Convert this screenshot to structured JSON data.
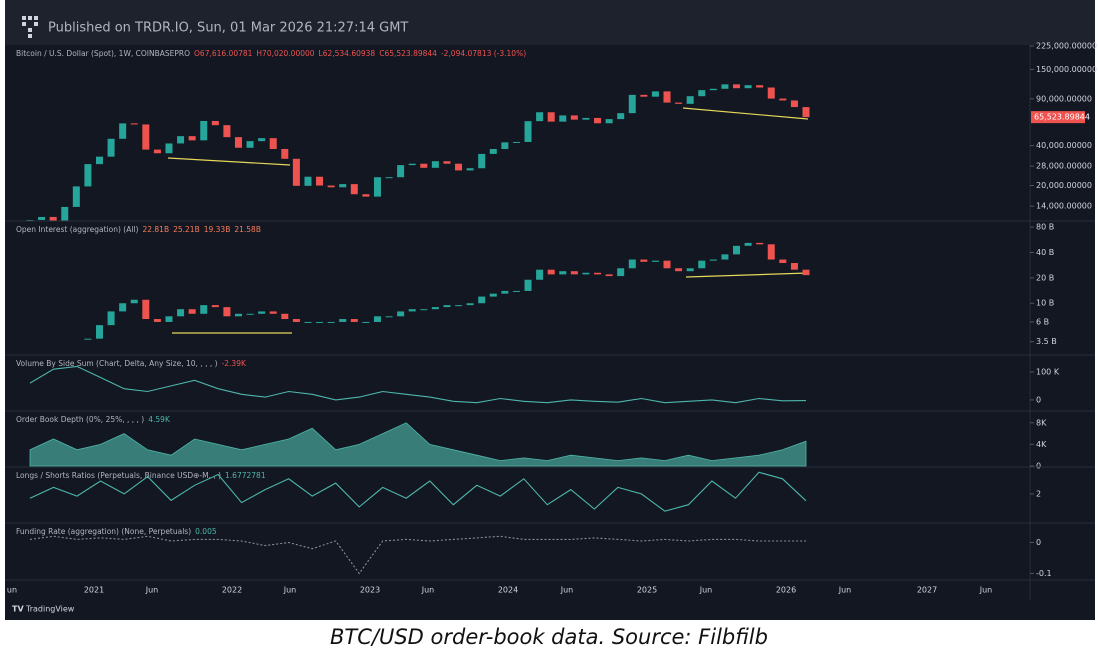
{
  "header": {
    "title": "Published on TRDR.IO, Sun, 01 Mar 2026 21:27:14 GMT"
  },
  "panes": [
    {
      "name": "Bitcoin / U.S. Dollar (Spot), 1W, COINBASEPRO",
      "legend_values": [
        "O67,616.00781",
        "H70,020.00000",
        "L62,534.60938",
        "C65,523.89844",
        "-2,094.07813 (-3.10%)"
      ],
      "legend_color": "#ef5350",
      "log": true,
      "ylim": [
        11000,
        225000
      ],
      "yticks": [
        {
          "value": 225000,
          "label": "225,000.00000"
        },
        {
          "value": 150000,
          "label": "150,000.00000"
        },
        {
          "value": 90000,
          "label": "90,000.00000"
        },
        {
          "value": 40000,
          "label": "40,000.00000"
        },
        {
          "value": 28000,
          "label": "28,000.00000"
        },
        {
          "value": 20000,
          "label": "20,000.00000"
        },
        {
          "value": 14000,
          "label": "14,000.00000"
        }
      ],
      "last": {
        "value": 65523.89844,
        "label": "65,523.89844"
      },
      "style": "candles",
      "values": [
        11000,
        11600,
        10800,
        13800,
        19700,
        29000,
        33000,
        45000,
        58800,
        57700,
        37300,
        35000,
        41500,
        47100,
        43800,
        61300,
        57000,
        46300,
        38500,
        43200,
        45500,
        37700,
        31800,
        19900,
        23300,
        20000,
        19400,
        20500,
        17200,
        16500,
        23100,
        23100,
        28500,
        29200,
        27200,
        30500,
        29200,
        26000,
        27000,
        34600,
        37700,
        42300,
        42600,
        61100,
        71300,
        60600,
        67500,
        62700,
        64600,
        58900,
        63300,
        70200,
        96400,
        93400,
        102400,
        84300,
        82500,
        94200,
        104600,
        107100,
        115700,
        108200,
        114000,
        109500,
        90400,
        87500,
        78000,
        65523.89844
      ]
    },
    {
      "name": "Open Interest (aggregation) (All)",
      "legend_values": [
        "22.81B",
        "25.21B",
        "19.33B",
        "21.58B"
      ],
      "legend_color": "#f77c5a",
      "log": true,
      "ylim": [
        2.5,
        92
      ],
      "yticks": [
        {
          "value": 80,
          "label": "80 B"
        },
        {
          "value": 40,
          "label": "40 B"
        },
        {
          "value": 20,
          "label": "20 B"
        },
        {
          "value": 10,
          "label": "10 B"
        },
        {
          "value": 6,
          "label": "6 B"
        },
        {
          "value": 3.5,
          "label": "3.5 B"
        }
      ],
      "style": "candles",
      "values": [
        null,
        null,
        null,
        null,
        null,
        3.8,
        5.5,
        8,
        10,
        11,
        6.5,
        6,
        7,
        8.5,
        7.5,
        9.5,
        9,
        7,
        7.5,
        7.5,
        8,
        7.5,
        6.5,
        6,
        6,
        6,
        6,
        6.5,
        6,
        6,
        7,
        7,
        8,
        8.5,
        8.5,
        9,
        9.5,
        9.5,
        10,
        12,
        13,
        14,
        14,
        19,
        25,
        22,
        24,
        22,
        23,
        22,
        21,
        26,
        33,
        31,
        32,
        26,
        24,
        26,
        32,
        33,
        38,
        48,
        52,
        50,
        33,
        30,
        25,
        21.58
      ]
    },
    {
      "name": "Volume By Side Sum (Chart, Delta, Any Size, 10, , , , )",
      "legend_values": [
        "-2.39K"
      ],
      "legend_color": "#ef5350",
      "log": false,
      "ylim": [
        -36,
        157
      ],
      "yticks": [
        {
          "value": 100,
          "label": "100 K"
        },
        0
      ],
      "style": "line",
      "color": "#4db6ac",
      "values": [
        60,
        110,
        120,
        80,
        40,
        30,
        50,
        70,
        40,
        20,
        10,
        30,
        20,
        0,
        10,
        30,
        20,
        10,
        -5,
        -10,
        5,
        -5,
        -10,
        0,
        -5,
        -8,
        5,
        -10,
        -5,
        0,
        -10,
        5,
        -3,
        -2.39
      ]
    },
    {
      "name": "Order Book Depth (0%, 25%, , , , )",
      "legend_values": [
        "4.59K"
      ],
      "legend_color": "#4db6ac",
      "log": false,
      "ylim": [
        0,
        10
      ],
      "yticks": [
        {
          "value": 8,
          "label": "8K"
        },
        {
          "value": 4,
          "label": "4K"
        },
        0
      ],
      "style": "area",
      "color": "#3f8f86",
      "values": [
        3,
        5,
        3,
        4,
        6,
        3,
        2,
        5,
        4,
        3,
        4,
        5,
        7,
        3,
        4,
        6,
        8,
        4,
        3,
        2,
        1,
        1.5,
        1,
        2,
        1.5,
        1,
        1.5,
        1,
        2,
        1,
        1.5,
        2,
        3,
        4.59
      ]
    },
    {
      "name": "Longs / Shorts Ratios (Perpetuals, Binance USD⊕-M, , )",
      "legend_values": [
        "1.6772781"
      ],
      "legend_color": "#4db6ac",
      "log": false,
      "ylim": [
        0.7,
        3.2
      ],
      "yticks": [
        2
      ],
      "style": "line",
      "color": "#4db6ac",
      "values": [
        1.8,
        2.3,
        1.9,
        2.6,
        2.0,
        2.8,
        1.7,
        2.4,
        2.9,
        1.6,
        2.2,
        2.7,
        1.9,
        2.5,
        1.4,
        2.3,
        1.8,
        2.6,
        1.5,
        2.4,
        1.9,
        2.7,
        1.5,
        2.2,
        1.3,
        2.3,
        2.0,
        1.2,
        1.5,
        2.6,
        1.8,
        3.0,
        2.7,
        1.68
      ]
    },
    {
      "name": "Funding Rate (aggregation) (None, Perpetuals)",
      "legend_values": [
        "0.005"
      ],
      "legend_color": "#4db6ac",
      "log": false,
      "ylim": [
        -0.115,
        0.06
      ],
      "yticks": [
        0,
        -0.1
      ],
      "style": "dotted",
      "color": "#8a8f9c",
      "values": [
        0.01,
        0.02,
        0.01,
        0.015,
        0.01,
        0.02,
        0.005,
        0.01,
        0.01,
        0.005,
        -0.01,
        0.0,
        -0.02,
        0.005,
        -0.1,
        0.005,
        0.01,
        0.005,
        0.01,
        0.015,
        0.02,
        0.01,
        0.01,
        0.01,
        0.015,
        0.01,
        0.005,
        0.01,
        0.005,
        0.01,
        0.01,
        0.005,
        0.005,
        0.005
      ]
    }
  ],
  "x_axis_labels": [
    "un",
    "2021",
    "Jun",
    "2022",
    "Jun",
    "2023",
    "Jun",
    "2024",
    "Jun",
    "2025",
    "Jun",
    "2026",
    "Jun",
    "2027",
    "Jun"
  ],
  "footer": {
    "brand": "TradingView"
  },
  "caption": "BTC/USD order-book data. Source: Filbfilb"
}
